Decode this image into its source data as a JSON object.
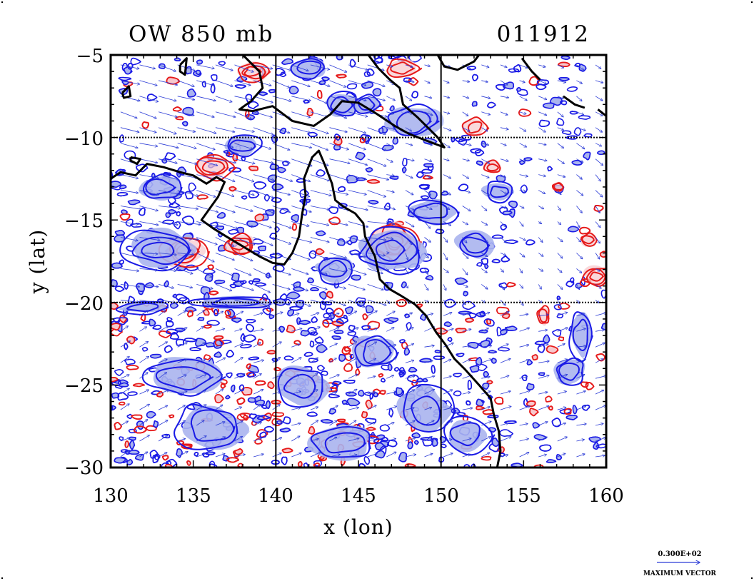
{
  "header": {
    "left_title": "OW 850 mb",
    "right_title": "011912"
  },
  "axes": {
    "xlabel": "x (lon)",
    "ylabel": "y (lat)",
    "x_ticks": [
      "130",
      "135",
      "140",
      "145",
      "150",
      "155",
      "160"
    ],
    "y_ticks": [
      "−5",
      "−10",
      "−15",
      "−20",
      "−25",
      "−30"
    ],
    "xlim": [
      130,
      160
    ],
    "ylim": [
      -30,
      -5
    ],
    "x_grid": [
      140,
      150
    ],
    "y_grid": [
      -10,
      -20
    ]
  },
  "legend": {
    "value_text": "0.300E+02",
    "caption": "MAXIMUM VECTOR"
  },
  "colors": {
    "negative_contour": "#1a1ae6",
    "negative_fill": "#aab4ee",
    "positive_contour": "#e61a1a",
    "positive_fill": "#f7c8cc",
    "coastline": "#000000",
    "wind_vector": "#2b3bd6"
  },
  "coastline_lonlat": [
    [
      [
        130.0,
        -12.5
      ],
      [
        130.6,
        -12.1
      ],
      [
        131.5,
        -12.3
      ],
      [
        132.2,
        -11.6
      ],
      [
        133.2,
        -11.8
      ],
      [
        134.2,
        -12.1
      ],
      [
        135.0,
        -12.3
      ],
      [
        135.8,
        -12.8
      ],
      [
        136.4,
        -12.4
      ],
      [
        136.9,
        -12.7
      ],
      [
        136.5,
        -13.6
      ],
      [
        136.0,
        -14.3
      ],
      [
        135.5,
        -15.0
      ],
      [
        136.2,
        -15.5
      ],
      [
        137.0,
        -16.0
      ],
      [
        138.0,
        -16.6
      ],
      [
        139.0,
        -17.2
      ],
      [
        139.8,
        -17.6
      ],
      [
        140.5,
        -17.7
      ],
      [
        141.0,
        -17.0
      ],
      [
        141.4,
        -16.0
      ],
      [
        141.6,
        -14.6
      ],
      [
        141.8,
        -13.5
      ],
      [
        141.7,
        -12.5
      ],
      [
        142.2,
        -11.2
      ],
      [
        142.6,
        -10.8
      ],
      [
        142.9,
        -11.5
      ],
      [
        143.4,
        -12.8
      ],
      [
        143.6,
        -13.8
      ],
      [
        144.1,
        -14.2
      ],
      [
        144.8,
        -14.6
      ],
      [
        145.3,
        -15.2
      ],
      [
        145.4,
        -16.0
      ],
      [
        146.0,
        -17.2
      ],
      [
        146.3,
        -18.6
      ],
      [
        146.9,
        -19.2
      ],
      [
        147.6,
        -19.6
      ],
      [
        148.4,
        -20.1
      ],
      [
        149.1,
        -20.8
      ],
      [
        149.7,
        -21.8
      ],
      [
        150.3,
        -22.6
      ],
      [
        150.8,
        -23.4
      ],
      [
        151.4,
        -24.0
      ],
      [
        152.3,
        -25.0
      ],
      [
        153.0,
        -25.8
      ],
      [
        153.2,
        -26.8
      ],
      [
        153.5,
        -27.8
      ],
      [
        153.6,
        -29.0
      ],
      [
        153.4,
        -30.0
      ]
    ],
    [
      [
        138.0,
        -5.0
      ],
      [
        139.0,
        -6.0
      ],
      [
        139.2,
        -7.0
      ],
      [
        138.5,
        -7.8
      ],
      [
        137.8,
        -8.3
      ],
      [
        138.6,
        -8.4
      ],
      [
        139.8,
        -8.1
      ],
      [
        141.0,
        -9.0
      ],
      [
        142.3,
        -9.3
      ],
      [
        143.3,
        -8.6
      ],
      [
        144.0,
        -7.8
      ],
      [
        145.0,
        -7.9
      ],
      [
        146.0,
        -8.5
      ],
      [
        147.2,
        -9.3
      ],
      [
        148.1,
        -9.8
      ],
      [
        149.4,
        -10.3
      ],
      [
        150.2,
        -10.6
      ],
      [
        149.8,
        -10.0
      ],
      [
        149.3,
        -9.5
      ],
      [
        148.6,
        -8.8
      ],
      [
        147.7,
        -8.0
      ],
      [
        147.5,
        -7.0
      ],
      [
        146.9,
        -6.5
      ],
      [
        146.2,
        -5.8
      ],
      [
        145.6,
        -5.0
      ]
    ],
    [
      [
        149.8,
        -5.0
      ],
      [
        150.2,
        -5.7
      ],
      [
        151.0,
        -5.9
      ],
      [
        152.0,
        -5.4
      ],
      [
        152.3,
        -5.0
      ]
    ],
    [
      [
        154.9,
        -5.2
      ],
      [
        155.5,
        -6.0
      ],
      [
        156.0,
        -6.5
      ]
    ],
    [
      [
        157.4,
        -7.5
      ],
      [
        158.1,
        -8.0
      ],
      [
        158.7,
        -8.2
      ]
    ],
    [
      [
        159.5,
        -8.3
      ],
      [
        160.0,
        -8.7
      ]
    ],
    [
      [
        131.2,
        -11.2
      ],
      [
        131.8,
        -11.3
      ],
      [
        131.6,
        -11.6
      ],
      [
        131.2,
        -11.4
      ],
      [
        131.2,
        -11.2
      ]
    ],
    [
      [
        130.7,
        -7.3
      ],
      [
        131.1,
        -6.9
      ],
      [
        131.2,
        -7.5
      ],
      [
        130.8,
        -7.6
      ],
      [
        130.7,
        -7.3
      ]
    ],
    [
      [
        134.2,
        -5.6
      ],
      [
        134.6,
        -5.2
      ],
      [
        134.5,
        -6.2
      ],
      [
        134.2,
        -6.0
      ],
      [
        134.2,
        -5.6
      ]
    ]
  ],
  "vortices_lonlat": [
    {
      "sign": "pos",
      "lon": 134.5,
      "lat": -16.9,
      "rx": 1.4,
      "ry": 1.0,
      "rings": 4
    },
    {
      "sign": "pos",
      "lon": 136.2,
      "lat": -11.8,
      "rx": 1.3,
      "ry": 0.8,
      "rings": 3
    },
    {
      "sign": "pos",
      "lon": 147.2,
      "lat": -16.3,
      "rx": 1.4,
      "ry": 1.2,
      "rings": 4
    },
    {
      "sign": "pos",
      "lon": 137.8,
      "lat": -16.5,
      "rx": 1.0,
      "ry": 0.7,
      "rings": 3
    },
    {
      "sign": "pos",
      "lon": 138.6,
      "lat": -6.0,
      "rx": 1.0,
      "ry": 0.6,
      "rings": 3
    },
    {
      "sign": "pos",
      "lon": 159.4,
      "lat": -18.4,
      "rx": 0.8,
      "ry": 0.6,
      "rings": 3
    },
    {
      "sign": "pos",
      "lon": 157.1,
      "lat": -13.0,
      "rx": 0.4,
      "ry": 0.3,
      "rings": 2
    },
    {
      "sign": "pos",
      "lon": 152.0,
      "lat": -9.4,
      "rx": 0.8,
      "ry": 0.6,
      "rings": 2
    },
    {
      "sign": "pos",
      "lon": 147.6,
      "lat": -5.8,
      "rx": 1.0,
      "ry": 0.6,
      "rings": 2
    },
    {
      "sign": "pos",
      "lon": 153.1,
      "lat": -11.8,
      "rx": 0.6,
      "ry": 0.4,
      "rings": 2
    },
    {
      "sign": "pos",
      "lon": 158.9,
      "lat": -16.2,
      "rx": 0.5,
      "ry": 0.4,
      "rings": 2
    },
    {
      "sign": "pos",
      "lon": 156.2,
      "lat": -20.8,
      "rx": 0.4,
      "ry": 0.6,
      "rings": 2
    },
    {
      "sign": "neg",
      "lon": 133.0,
      "lat": -16.8,
      "rx": 2.2,
      "ry": 1.2,
      "rings": 3
    },
    {
      "sign": "neg",
      "lon": 147.0,
      "lat": -16.8,
      "rx": 2.0,
      "ry": 1.4,
      "rings": 3
    },
    {
      "sign": "neg",
      "lon": 143.5,
      "lat": -18.0,
      "rx": 1.2,
      "ry": 0.8,
      "rings": 2
    },
    {
      "sign": "neg",
      "lon": 144.0,
      "lat": -8.0,
      "rx": 1.0,
      "ry": 0.8,
      "rings": 2
    },
    {
      "sign": "neg",
      "lon": 145.5,
      "lat": -8.0,
      "rx": 0.8,
      "ry": 0.6,
      "rings": 2
    },
    {
      "sign": "neg",
      "lon": 142.0,
      "lat": -5.8,
      "rx": 1.2,
      "ry": 0.6,
      "rings": 2
    },
    {
      "sign": "neg",
      "lon": 148.3,
      "lat": -9.0,
      "rx": 1.6,
      "ry": 1.0,
      "rings": 2
    },
    {
      "sign": "neg",
      "lon": 133.0,
      "lat": -13.0,
      "rx": 1.2,
      "ry": 0.8,
      "rings": 2
    },
    {
      "sign": "neg",
      "lon": 138.0,
      "lat": -10.5,
      "rx": 1.2,
      "ry": 0.6,
      "rings": 2
    },
    {
      "sign": "neg",
      "lon": 149.5,
      "lat": -14.5,
      "rx": 1.6,
      "ry": 0.8,
      "rings": 2
    },
    {
      "sign": "neg",
      "lon": 157.8,
      "lat": -24.2,
      "rx": 1.0,
      "ry": 0.8,
      "rings": 2
    },
    {
      "sign": "neg",
      "lon": 158.5,
      "lat": -22.0,
      "rx": 0.7,
      "ry": 1.4,
      "rings": 2
    },
    {
      "sign": "neg",
      "lon": 134.5,
      "lat": -24.5,
      "rx": 2.4,
      "ry": 1.2,
      "rings": 2
    },
    {
      "sign": "neg",
      "lon": 136.0,
      "lat": -27.5,
      "rx": 2.2,
      "ry": 1.4,
      "rings": 2
    },
    {
      "sign": "neg",
      "lon": 141.5,
      "lat": -25.0,
      "rx": 1.6,
      "ry": 1.2,
      "rings": 2
    },
    {
      "sign": "neg",
      "lon": 146.0,
      "lat": -23.0,
      "rx": 1.4,
      "ry": 1.0,
      "rings": 2
    },
    {
      "sign": "neg",
      "lon": 149.0,
      "lat": -26.5,
      "rx": 1.6,
      "ry": 1.4,
      "rings": 2
    },
    {
      "sign": "neg",
      "lon": 144.0,
      "lat": -28.5,
      "rx": 2.0,
      "ry": 1.0,
      "rings": 2
    },
    {
      "sign": "neg",
      "lon": 151.5,
      "lat": -28.0,
      "rx": 1.4,
      "ry": 1.2,
      "rings": 2
    },
    {
      "sign": "neg",
      "lon": 152.0,
      "lat": -16.5,
      "rx": 1.2,
      "ry": 0.8,
      "rings": 2
    },
    {
      "sign": "neg",
      "lon": 153.5,
      "lat": -13.3,
      "rx": 1.0,
      "ry": 0.6,
      "rings": 2
    },
    {
      "sign": "neg",
      "lon": 132.0,
      "lat": -20.3,
      "rx": 1.6,
      "ry": 0.4,
      "rings": 2
    },
    {
      "sign": "neg",
      "lon": 137.5,
      "lat": -20.0,
      "rx": 2.4,
      "ry": 0.4,
      "rings": 2
    }
  ]
}
